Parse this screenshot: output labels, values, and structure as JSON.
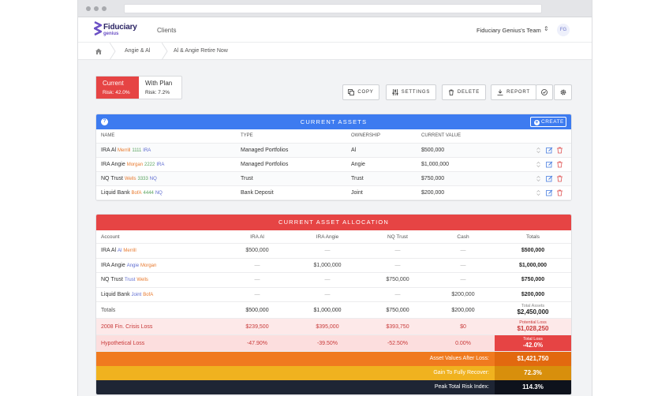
{
  "header": {
    "logo_line1": "Fiduciary",
    "logo_line2": "genius",
    "nav_clients": "Clients",
    "team_name": "Fiduciary Genius's Team",
    "avatar_initials": "FG"
  },
  "breadcrumb": {
    "item1": "Angie & Al",
    "item2": "Al & Angie Retire Now"
  },
  "plan_tabs": [
    {
      "title": "Current",
      "risk": "Risk: 42.0%"
    },
    {
      "title": "With Plan",
      "risk": "Risk: 7.2%"
    }
  ],
  "toolbar": {
    "copy": "COPY",
    "settings": "SETTINGS",
    "delete": "DELETE",
    "report": "REPORT"
  },
  "assets": {
    "title": "CURRENT ASSETS",
    "help": "?",
    "create": "CREATE",
    "columns": {
      "name": "NAME",
      "type": "TYPE",
      "ownership": "OWNERSHIP",
      "value": "CURRENT VALUE"
    },
    "rows": [
      {
        "name": "IRA Al",
        "inst": "Merrill",
        "num": "1111",
        "code": "IRA",
        "type": "Managed Portfolios",
        "owner": "Al",
        "value": "$500,000"
      },
      {
        "name": "IRA Angie",
        "inst": "Morgan",
        "num": "2222",
        "code": "IRA",
        "type": "Managed Portfolios",
        "owner": "Angie",
        "value": "$1,000,000"
      },
      {
        "name": "NQ Trust",
        "inst": "Wells",
        "num": "3333",
        "code": "NQ",
        "type": "Trust",
        "owner": "Trust",
        "value": "$750,000"
      },
      {
        "name": "Liquid Bank",
        "inst": "BofA",
        "num": "4444",
        "code": "NQ",
        "type": "Bank Deposit",
        "owner": "Joint",
        "value": "$200,000"
      }
    ]
  },
  "allocation": {
    "title": "CURRENT ASSET ALLOCATION",
    "columns": {
      "account": "Account",
      "c1": "IRA Al",
      "c2": "IRA Angie",
      "c3": "NQ Trust",
      "c4": "Cash",
      "c5": "Totals"
    },
    "dash": "—",
    "rows": [
      {
        "name": "IRA Al",
        "sub1": "Al",
        "sub2": "Merrill",
        "total": "$500,000"
      },
      {
        "name": "IRA Angie",
        "sub1": "Angie",
        "sub2": "Morgan",
        "total": "$1,000,000"
      },
      {
        "name": "NQ Trust",
        "sub1": "Trust",
        "sub2": "Wells",
        "total": "$750,000"
      },
      {
        "name": "Liquid Bank",
        "sub1": "Joint",
        "sub2": "BofA",
        "total": "$200,000"
      }
    ],
    "row_values": {
      "r0c1": "$500,000",
      "r1c2": "$1,000,000",
      "r2c3": "$750,000",
      "r3c4": "$200,000"
    },
    "totals": {
      "label": "Totals",
      "c1": "$500,000",
      "c2": "$1,000,000",
      "c3": "$750,000",
      "c4": "$200,000",
      "small": "Total Assets",
      "big": "$2,450,000"
    },
    "crisis": {
      "label": "2008 Fin. Crisis Loss",
      "c1": "$239,500",
      "c2": "$395,000",
      "c3": "$393,750",
      "c4": "$0",
      "small": "Potential Loss",
      "big": "$1,028,250"
    },
    "hypo": {
      "label": "Hypothetical Loss",
      "c1": "-47.90%",
      "c2": "-39.50%",
      "c3": "-52.50%",
      "c4": "0.00%",
      "small": "Total Loss",
      "big": "-42.0%"
    },
    "bands": [
      {
        "label": "Asset Values After Loss:",
        "value": "$1,421,750",
        "bg": "#f07a1f",
        "vbg": "#e2690f"
      },
      {
        "label": "Gain To Fully Recover:",
        "value": "72.3%",
        "bg": "#f0b21f",
        "vbg": "#d88f0c"
      },
      {
        "label": "Peak Total Risk Index:",
        "value": "114.3%",
        "bg": "#1e2534",
        "vbg": "#0e121c"
      }
    ]
  }
}
